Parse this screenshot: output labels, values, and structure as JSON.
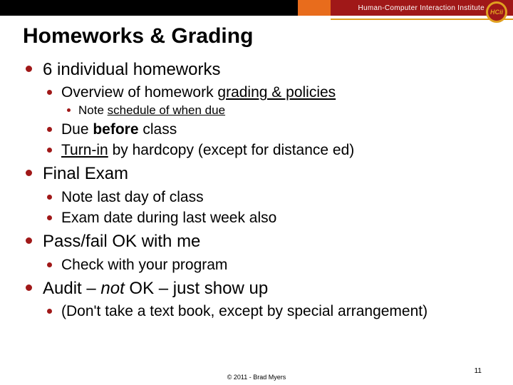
{
  "colors": {
    "bullet": "#a01818",
    "banner_black": "#000000",
    "banner_orange": "#e86c1c",
    "banner_red": "#a01818",
    "logo_ring": "#e0a020",
    "text": "#000000",
    "bg": "#ffffff"
  },
  "banner": {
    "institute_label": "Human-Computer Interaction Institute",
    "logo_text": "HCii"
  },
  "title": "Homeworks & Grading",
  "b1": {
    "text": "6 individual homeworks",
    "s1": {
      "pre": "Overview of homework ",
      "u": "grading & policies",
      "d1_pre": "Note ",
      "d1_u": "schedule of when due"
    },
    "s2": {
      "pre": "Due ",
      "bold": "before",
      "post": " class"
    },
    "s3": {
      "u": "Turn-in",
      "post": " by hardcopy (except for distance ed)"
    }
  },
  "b2": {
    "text": "Final Exam",
    "s1": "Note last day of class",
    "s2": "Exam date during last week also"
  },
  "b3": {
    "text": "Pass/fail OK with me",
    "s1": "Check with your program"
  },
  "b4": {
    "pre": "Audit – ",
    "ital": "not",
    "post": " OK – just show up",
    "s1": "(Don't take a text book, except by special arrangement)"
  },
  "footer": "© 2011 - Brad Myers",
  "pagenum": "11"
}
